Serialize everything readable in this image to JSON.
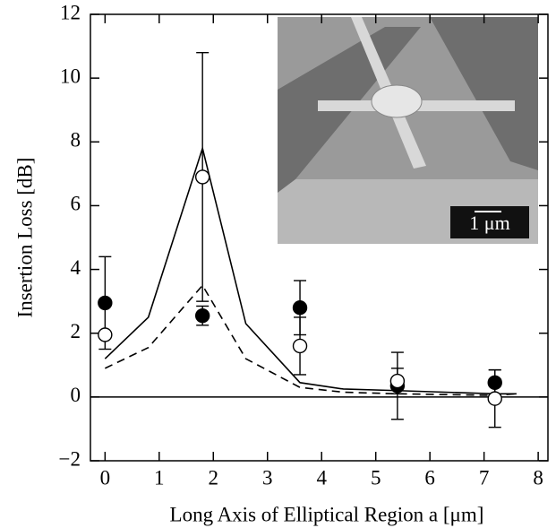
{
  "chart_data": {
    "type": "line",
    "xlabel": "Long Axis of Elliptical Region a [μm]",
    "ylabel": "Insertion Loss [dB]",
    "inset_label": "1 μm",
    "xlim": [
      -0.27,
      8.18
    ],
    "ylim": [
      -2,
      12
    ],
    "xticks": [
      0,
      1,
      2,
      3,
      4,
      5,
      6,
      7,
      8
    ],
    "yticks": [
      {
        "value": -2,
        "label": "−2"
      },
      0,
      2,
      4,
      6,
      8,
      10,
      12
    ],
    "hline": 0,
    "lines": [
      {
        "linestyle": "solid",
        "color": "#000",
        "x": [
          0,
          0.8,
          1.8,
          2.6,
          3.6,
          4.4,
          5.4,
          7.2,
          7.6
        ],
        "values": [
          1.2,
          2.5,
          7.8,
          2.3,
          0.45,
          0.25,
          0.2,
          0.1,
          0.1
        ]
      },
      {
        "linestyle": "dashed",
        "color": "#000",
        "x": [
          0,
          0.8,
          1.8,
          2.6,
          3.6,
          4.4,
          5.4,
          7.2,
          7.6
        ],
        "values": [
          0.9,
          1.55,
          3.5,
          1.2,
          0.3,
          0.15,
          0.1,
          0.05,
          0.1
        ]
      }
    ],
    "points": [
      {
        "marker_fill": "#000",
        "x": [
          0,
          1.8,
          3.6,
          5.4,
          7.2
        ],
        "values": [
          2.95,
          2.55,
          2.8,
          0.35,
          0.45
        ],
        "errors": [
          1.45,
          0.3,
          0.85,
          1.05,
          0.4
        ]
      },
      {
        "marker_fill": "#fff",
        "x": [
          0,
          1.8,
          3.6,
          5.4,
          7.2
        ],
        "values": [
          1.95,
          6.9,
          1.6,
          0.5,
          -0.05
        ],
        "errors": [
          0,
          3.9,
          0.9,
          0.4,
          0.9
        ]
      }
    ]
  }
}
